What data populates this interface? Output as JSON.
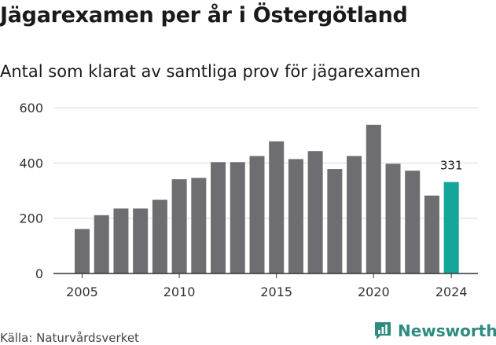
{
  "title": "Jägarexamen per år i Östergötland",
  "subtitle": "Antal som klarat av samtliga prov för jägarexamen",
  "source": "Källa: Naturvårdsverket",
  "brand": {
    "name": "Newsworthy",
    "icon": "newsworthy-chart-icon"
  },
  "colors": {
    "bar": "#6e6d72",
    "highlight": "#13a699",
    "grid": "#d9d9d9",
    "axis": "#333333",
    "brand": "#2e8b80"
  },
  "chart_data": {
    "type": "bar",
    "categories": [
      2005,
      2006,
      2007,
      2008,
      2009,
      2010,
      2011,
      2012,
      2013,
      2014,
      2015,
      2016,
      2017,
      2018,
      2019,
      2020,
      2021,
      2022,
      2023,
      2024
    ],
    "values": [
      161,
      211,
      235,
      235,
      267,
      341,
      346,
      403,
      403,
      425,
      478,
      414,
      443,
      378,
      425,
      538,
      397,
      372,
      282,
      331
    ],
    "highlight_index": 19,
    "data_labels": [
      {
        "index": 19,
        "text": "331"
      }
    ],
    "title": "Jägarexamen per år i Östergötland",
    "subtitle": "Antal som klarat av samtliga prov för jägarexamen",
    "xlabel": "",
    "ylabel": "",
    "ylim": [
      0,
      600
    ],
    "yticks": [
      0,
      200,
      400,
      600
    ],
    "xticks": [
      2005,
      2010,
      2015,
      2020,
      2024
    ],
    "grid": true,
    "legend": "none"
  }
}
